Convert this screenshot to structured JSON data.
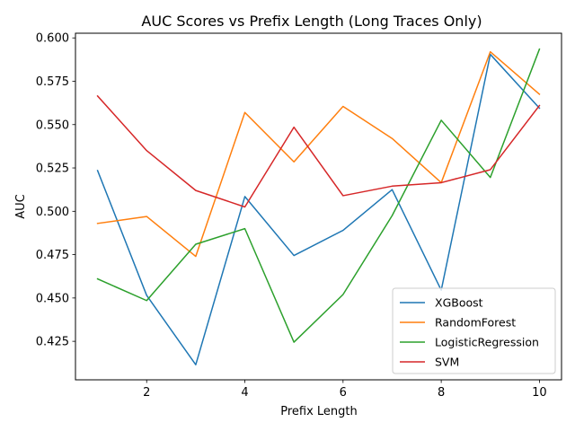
{
  "chart_data": {
    "type": "line",
    "title": "AUC Scores vs Prefix Length (Long Traces Only)",
    "xlabel": "Prefix Length",
    "ylabel": "AUC",
    "x": [
      1,
      2,
      3,
      4,
      5,
      6,
      7,
      8,
      9,
      10
    ],
    "xlim": [
      0.55,
      10.45
    ],
    "ylim": [
      0.4028,
      0.6027
    ],
    "xticks": [
      2,
      4,
      6,
      8,
      10
    ],
    "yticks": [
      0.425,
      0.45,
      0.475,
      0.5,
      0.525,
      0.55,
      0.575,
      0.6
    ],
    "ytick_labels": [
      "0.425",
      "0.450",
      "0.475",
      "0.500",
      "0.525",
      "0.550",
      "0.575",
      "0.600"
    ],
    "grid": false,
    "legend_position": "lower-right",
    "series": [
      {
        "name": "XGBoost",
        "color": "#1f77b4",
        "values": [
          0.5235,
          0.4515,
          0.4115,
          0.5085,
          0.4745,
          0.489,
          0.5125,
          0.4545,
          0.5905,
          0.5595
        ]
      },
      {
        "name": "RandomForest",
        "color": "#ff7f0e",
        "values": [
          0.493,
          0.497,
          0.474,
          0.557,
          0.5285,
          0.5605,
          0.542,
          0.5165,
          0.592,
          0.5675
        ]
      },
      {
        "name": "LogisticRegression",
        "color": "#2ca02c",
        "values": [
          0.461,
          0.4485,
          0.481,
          0.49,
          0.4245,
          0.452,
          0.4975,
          0.5525,
          0.5195,
          0.5935
        ]
      },
      {
        "name": "SVM",
        "color": "#d62728",
        "values": [
          0.5665,
          0.535,
          0.512,
          0.5025,
          0.5485,
          0.509,
          0.5145,
          0.5165,
          0.524,
          0.561
        ]
      }
    ]
  }
}
